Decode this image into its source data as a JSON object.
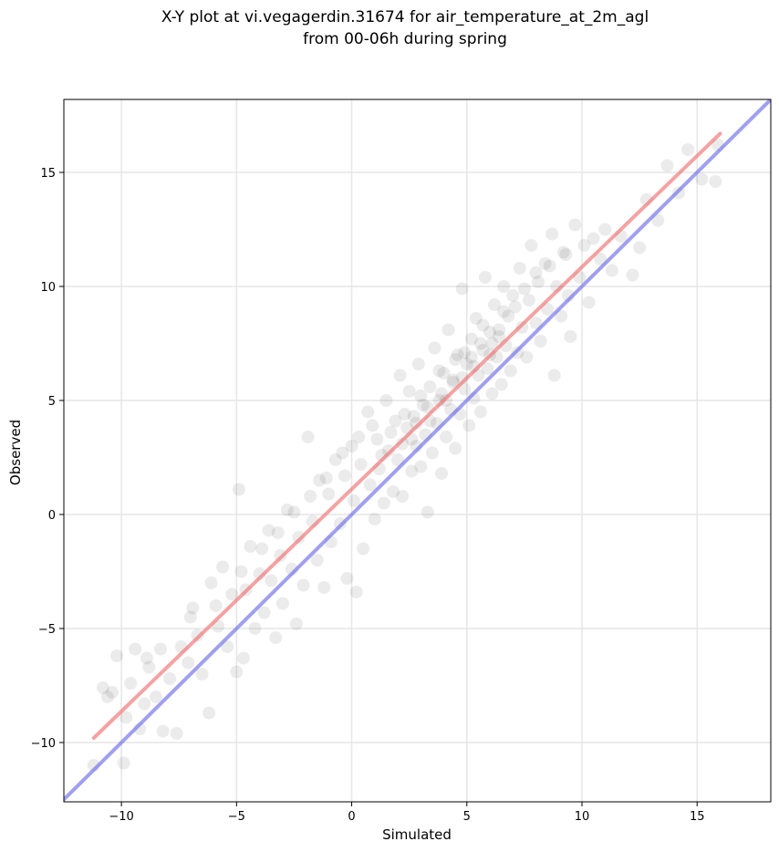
{
  "chart_data": {
    "type": "scatter",
    "title": "X-Y plot at vi.vegagerdin.31674 for air_temperature_at_2m_agl",
    "subtitle": "from 00-06h during spring",
    "xlabel": "Simulated",
    "ylabel": "Observed",
    "xlim": [
      -12.5,
      18.2
    ],
    "ylim": [
      -12.6,
      18.2
    ],
    "xticks": [
      -10,
      -5,
      0,
      5,
      10,
      15
    ],
    "yticks": [
      -10,
      -5,
      0,
      5,
      10,
      15
    ],
    "xtick_labels": [
      "−10",
      "−5",
      "0",
      "5",
      "10",
      "15"
    ],
    "ytick_labels": [
      "−10",
      "−5",
      "0",
      "5",
      "10",
      "15"
    ],
    "grid": true,
    "point_color": "#000000",
    "point_alpha": 0.08,
    "points": [
      [
        -11.2,
        -11.0
      ],
      [
        -10.8,
        -7.6
      ],
      [
        -10.6,
        -8.0
      ],
      [
        -10.2,
        -6.2
      ],
      [
        -9.9,
        -10.9
      ],
      [
        -9.8,
        -8.9
      ],
      [
        -9.6,
        -7.4
      ],
      [
        -9.4,
        -5.9
      ],
      [
        -9.2,
        -9.4
      ],
      [
        -9.0,
        -8.3
      ],
      [
        -8.8,
        -6.7
      ],
      [
        -8.5,
        -8.0
      ],
      [
        -8.3,
        -5.9
      ],
      [
        -8.2,
        -9.5
      ],
      [
        -7.9,
        -7.2
      ],
      [
        -7.6,
        -9.6
      ],
      [
        -7.4,
        -5.8
      ],
      [
        -7.1,
        -6.5
      ],
      [
        -6.9,
        -4.1
      ],
      [
        -6.7,
        -5.3
      ],
      [
        -6.5,
        -7.0
      ],
      [
        -6.2,
        -8.7
      ],
      [
        -6.1,
        -3.0
      ],
      [
        -5.8,
        -4.9
      ],
      [
        -5.6,
        -2.3
      ],
      [
        -5.4,
        -5.8
      ],
      [
        -5.2,
        -3.5
      ],
      [
        -5.0,
        -6.9
      ],
      [
        -4.9,
        1.1
      ],
      [
        -4.7,
        -6.3
      ],
      [
        -4.6,
        -3.3
      ],
      [
        -4.4,
        -1.4
      ],
      [
        -4.2,
        -5.0
      ],
      [
        -4.0,
        -2.6
      ],
      [
        -3.8,
        -4.3
      ],
      [
        -3.6,
        -0.7
      ],
      [
        -3.5,
        -2.9
      ],
      [
        -3.3,
        -5.4
      ],
      [
        -3.1,
        -1.8
      ],
      [
        -3.0,
        -3.9
      ],
      [
        -2.8,
        0.2
      ],
      [
        -2.6,
        -2.4
      ],
      [
        -2.4,
        -4.8
      ],
      [
        -2.3,
        -1.0
      ],
      [
        -2.1,
        -3.1
      ],
      [
        -1.9,
        3.4
      ],
      [
        -1.7,
        -0.3
      ],
      [
        -1.5,
        -2.0
      ],
      [
        -1.4,
        1.5
      ],
      [
        -1.2,
        -3.2
      ],
      [
        -1.0,
        0.9
      ],
      [
        -0.9,
        -1.2
      ],
      [
        -0.7,
        2.4
      ],
      [
        -0.5,
        -0.4
      ],
      [
        -0.3,
        1.7
      ],
      [
        -0.2,
        -2.8
      ],
      [
        0.0,
        3.0
      ],
      [
        0.1,
        0.6
      ],
      [
        0.2,
        -3.4
      ],
      [
        0.4,
        2.2
      ],
      [
        0.5,
        -1.5
      ],
      [
        0.7,
        4.5
      ],
      [
        0.8,
        1.3
      ],
      [
        1.0,
        -0.2
      ],
      [
        1.1,
        3.3
      ],
      [
        1.2,
        2.0
      ],
      [
        1.4,
        0.5
      ],
      [
        1.5,
        5.0
      ],
      [
        1.6,
        2.8
      ],
      [
        1.8,
        1.0
      ],
      [
        1.9,
        4.1
      ],
      [
        2.0,
        2.4
      ],
      [
        2.1,
        6.1
      ],
      [
        2.2,
        0.8
      ],
      [
        2.4,
        3.8
      ],
      [
        2.5,
        5.4
      ],
      [
        2.6,
        1.9
      ],
      [
        2.7,
        4.3
      ],
      [
        2.8,
        3.0
      ],
      [
        2.9,
        6.6
      ],
      [
        3.0,
        2.1
      ],
      [
        3.1,
        4.8
      ],
      [
        3.2,
        3.5
      ],
      [
        3.3,
        0.1
      ],
      [
        3.4,
        5.6
      ],
      [
        3.5,
        2.7
      ],
      [
        3.6,
        7.3
      ],
      [
        3.7,
        4.0
      ],
      [
        3.8,
        5.0
      ],
      [
        3.9,
        1.8
      ],
      [
        4.0,
        6.2
      ],
      [
        4.1,
        3.4
      ],
      [
        4.2,
        8.1
      ],
      [
        4.3,
        4.6
      ],
      [
        4.4,
        5.8
      ],
      [
        4.5,
        2.9
      ],
      [
        4.6,
        7.0
      ],
      [
        4.7,
        4.4
      ],
      [
        4.8,
        9.9
      ],
      [
        4.9,
        5.5
      ],
      [
        5.0,
        6.6
      ],
      [
        5.1,
        3.9
      ],
      [
        5.2,
        7.7
      ],
      [
        5.3,
        5.1
      ],
      [
        5.4,
        8.6
      ],
      [
        5.5,
        6.1
      ],
      [
        5.6,
        4.5
      ],
      [
        5.7,
        7.2
      ],
      [
        5.8,
        10.4
      ],
      [
        5.9,
        6.4
      ],
      [
        6.0,
        8.0
      ],
      [
        6.1,
        5.3
      ],
      [
        6.2,
        9.2
      ],
      [
        6.3,
        6.9
      ],
      [
        6.4,
        7.8
      ],
      [
        6.5,
        5.7
      ],
      [
        6.6,
        10.0
      ],
      [
        6.7,
        7.4
      ],
      [
        6.8,
        8.7
      ],
      [
        6.9,
        6.3
      ],
      [
        7.0,
        9.6
      ],
      [
        7.2,
        7.1
      ],
      [
        7.3,
        10.8
      ],
      [
        7.4,
        8.2
      ],
      [
        7.6,
        6.9
      ],
      [
        7.7,
        9.4
      ],
      [
        7.8,
        11.8
      ],
      [
        8.0,
        8.4
      ],
      [
        8.1,
        10.2
      ],
      [
        8.2,
        7.6
      ],
      [
        8.4,
        11.0
      ],
      [
        8.5,
        9.0
      ],
      [
        8.7,
        12.3
      ],
      [
        8.8,
        6.1
      ],
      [
        8.9,
        10.0
      ],
      [
        9.1,
        8.7
      ],
      [
        9.2,
        11.5
      ],
      [
        9.4,
        9.6
      ],
      [
        9.5,
        7.8
      ],
      [
        9.7,
        12.7
      ],
      [
        9.9,
        10.4
      ],
      [
        10.1,
        11.8
      ],
      [
        10.3,
        9.3
      ],
      [
        10.5,
        12.1
      ],
      [
        10.8,
        11.2
      ],
      [
        11.0,
        12.5
      ],
      [
        11.3,
        10.7
      ],
      [
        11.7,
        12.2
      ],
      [
        12.2,
        10.5
      ],
      [
        12.5,
        11.7
      ],
      [
        12.8,
        13.8
      ],
      [
        13.3,
        12.9
      ],
      [
        13.7,
        15.3
      ],
      [
        14.2,
        14.1
      ],
      [
        14.6,
        16.0
      ],
      [
        15.2,
        14.7
      ],
      [
        15.8,
        14.6
      ],
      [
        15.9,
        16.2
      ],
      [
        -10.4,
        -7.8
      ],
      [
        -8.9,
        -6.3
      ],
      [
        -7.0,
        -4.5
      ],
      [
        -5.9,
        -4.0
      ],
      [
        -4.8,
        -2.5
      ],
      [
        -3.9,
        -1.5
      ],
      [
        -3.2,
        -0.8
      ],
      [
        -2.5,
        0.1
      ],
      [
        -1.8,
        0.8
      ],
      [
        -1.1,
        1.6
      ],
      [
        -0.4,
        2.7
      ],
      [
        0.3,
        3.4
      ],
      [
        0.9,
        3.9
      ],
      [
        1.3,
        2.6
      ],
      [
        1.7,
        3.6
      ],
      [
        2.3,
        4.4
      ],
      [
        2.6,
        3.3
      ],
      [
        3.0,
        5.2
      ],
      [
        3.4,
        4.1
      ],
      [
        3.8,
        6.3
      ],
      [
        4.1,
        5.0
      ],
      [
        4.5,
        6.8
      ],
      [
        4.9,
        7.1
      ],
      [
        5.3,
        6.5
      ],
      [
        5.7,
        8.3
      ],
      [
        6.1,
        7.5
      ],
      [
        6.6,
        8.9
      ],
      [
        7.1,
        9.1
      ],
      [
        7.5,
        9.9
      ],
      [
        8.0,
        10.6
      ],
      [
        8.6,
        10.9
      ],
      [
        9.3,
        11.4
      ],
      [
        2.2,
        3.1
      ],
      [
        2.8,
        4.0
      ],
      [
        3.3,
        4.7
      ],
      [
        3.9,
        5.3
      ],
      [
        4.4,
        5.9
      ],
      [
        4.8,
        6.0
      ],
      [
        5.2,
        6.9
      ],
      [
        5.6,
        7.5
      ],
      [
        6.0,
        7.0
      ],
      [
        6.4,
        8.1
      ]
    ],
    "series": [
      {
        "name": "",
        "kind": "regression",
        "color": "#f07070",
        "alpha": 0.65,
        "x": [
          -11.2,
          16.0
        ],
        "y": [
          -9.8,
          16.7
        ]
      },
      {
        "name": "",
        "kind": "identity",
        "color": "#6d6de8",
        "alpha": 0.65,
        "x": [
          -12.5,
          18.2
        ],
        "y": [
          -12.5,
          18.2
        ]
      }
    ]
  }
}
